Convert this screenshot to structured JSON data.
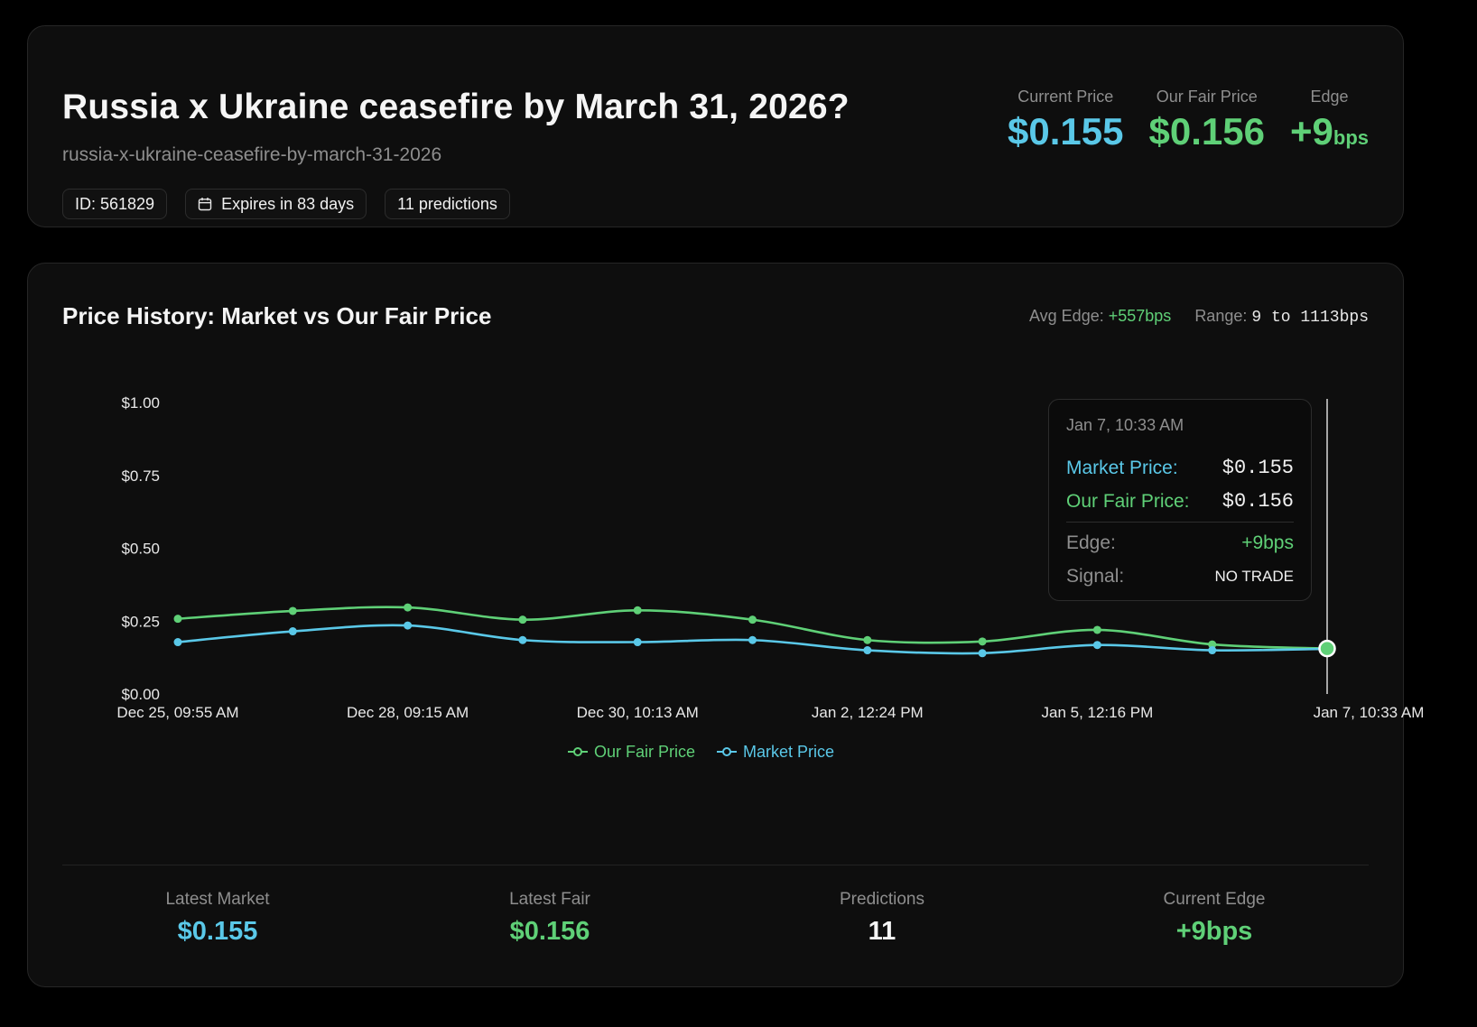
{
  "market": {
    "title": "Russia x Ukraine ceasefire by March 31, 2026?",
    "slug": "russia-x-ukraine-ceasefire-by-march-31-2026",
    "chips": {
      "id": "ID: 561829",
      "expires": "Expires in 83 days",
      "predictions": "11 predictions"
    }
  },
  "kpis": {
    "current_price_label": "Current Price",
    "current_price": "$0.155",
    "fair_price_label": "Our Fair Price",
    "fair_price": "$0.156",
    "edge_label": "Edge",
    "edge_value": "+9",
    "edge_unit": "bps"
  },
  "chart": {
    "title": "Price History: Market vs Our Fair Price",
    "avg_edge_label": "Avg Edge:",
    "avg_edge_value": "+557bps",
    "range_label": "Range:",
    "range_value": "9 to 1113bps"
  },
  "tooltip": {
    "date": "Jan 7, 10:33 AM",
    "market_label": "Market Price:",
    "market_value": "$0.155",
    "fair_label": "Our Fair Price:",
    "fair_value": "$0.156",
    "edge_label": "Edge:",
    "edge_value": "+9bps",
    "signal_label": "Signal:",
    "signal_value": "NO TRADE"
  },
  "stats": {
    "latest_market_label": "Latest Market",
    "latest_market": "$0.155",
    "latest_fair_label": "Latest Fair",
    "latest_fair": "$0.156",
    "predictions_label": "Predictions",
    "predictions": "11",
    "current_edge_label": "Current Edge",
    "current_edge": "+9bps"
  },
  "colors": {
    "market": "#5ac8e8",
    "fair": "#5fd077",
    "background": "#0e0e0e"
  },
  "chart_data": {
    "type": "line",
    "x": [
      "Dec 25, 09:55 AM",
      "",
      "Dec 28, 09:15 AM",
      "",
      "Dec 30, 10:13 AM",
      "",
      "Jan 2, 12:24 PM",
      "",
      "Jan 5, 12:16 PM",
      "",
      "Jan 7, 10:33 AM"
    ],
    "x_tick_labels": [
      "Dec 25, 09:55 AM",
      "Dec 28, 09:15 AM",
      "Dec 30, 10:13 AM",
      "Jan 2, 12:24 PM",
      "Jan 5, 12:16 PM",
      "Jan 7, 10:33 AM"
    ],
    "y_tick_labels": [
      "$0.00",
      "$0.25",
      "$0.50",
      "$0.75",
      "$1.00"
    ],
    "ylim": [
      0,
      1
    ],
    "series": [
      {
        "name": "Our Fair Price",
        "color": "#5fd077",
        "values": [
          0.258,
          0.285,
          0.297,
          0.255,
          0.287,
          0.255,
          0.185,
          0.18,
          0.22,
          0.17,
          0.156
        ]
      },
      {
        "name": "Market Price",
        "color": "#5ac8e8",
        "values": [
          0.178,
          0.215,
          0.235,
          0.185,
          0.178,
          0.185,
          0.15,
          0.14,
          0.168,
          0.15,
          0.155
        ]
      }
    ],
    "legend": "bottom-center",
    "grid": false,
    "highlighted_index": 10
  }
}
